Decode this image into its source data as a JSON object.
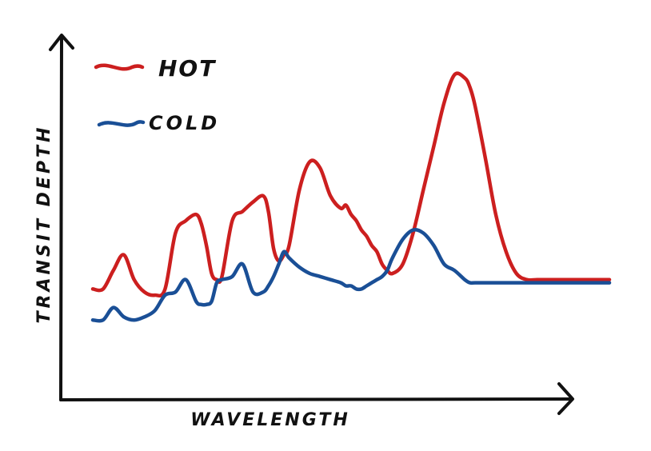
{
  "chart_data": {
    "type": "line",
    "xlabel": "WAVELENGTH",
    "ylabel": "TRANSIT DEPTH",
    "title": "",
    "grid": false,
    "ticks": false,
    "legend_position": "top-left",
    "xlim": [
      0,
      100
    ],
    "ylim": [
      0,
      100
    ],
    "series": [
      {
        "name": "HOT",
        "color": "#cc1f1f",
        "x": [
          0,
          2,
          4,
          6,
          8,
          10,
          12,
          14,
          16,
          18,
          20,
          21,
          22,
          23,
          24,
          25,
          27,
          29,
          31,
          33,
          34,
          35,
          36,
          37,
          38,
          40,
          42,
          44,
          46,
          48,
          49,
          50,
          51,
          52,
          53,
          54,
          55,
          56,
          57,
          58,
          60,
          62,
          64,
          66,
          68,
          70,
          72,
          73,
          74,
          76,
          78,
          80,
          82,
          84,
          86,
          88,
          90,
          91,
          92,
          93,
          94,
          96,
          98,
          100
        ],
        "y": [
          28,
          28,
          34,
          39,
          31,
          27,
          26,
          28,
          46,
          50,
          52,
          49,
          42,
          33,
          31,
          32,
          50,
          53,
          56,
          58,
          53,
          41,
          37,
          39,
          42,
          60,
          69,
          67,
          58,
          54,
          55,
          52,
          50,
          47,
          45,
          42,
          40,
          36,
          34,
          33,
          36,
          46,
          60,
          74,
          88,
          97,
          96,
          93,
          87,
          70,
          52,
          40,
          33,
          31,
          31,
          31,
          31,
          31,
          31,
          31,
          31,
          31,
          31,
          31
        ]
      },
      {
        "name": "COLD",
        "color": "#1a4f96",
        "x": [
          0,
          2,
          4,
          6,
          8,
          10,
          12,
          14,
          16,
          18,
          20,
          21,
          22,
          23,
          24,
          25,
          27,
          29,
          31,
          33,
          34,
          35,
          36,
          37,
          38,
          40,
          42,
          44,
          46,
          48,
          49,
          50,
          51,
          52,
          53,
          54,
          55,
          56,
          57,
          58,
          60,
          62,
          64,
          66,
          68,
          70,
          72,
          73,
          74,
          76,
          78,
          80,
          82,
          84,
          86,
          88,
          90,
          91,
          92,
          93,
          94,
          96,
          98,
          100
        ],
        "y": [
          18,
          18,
          22,
          19,
          18,
          19,
          21,
          26,
          27,
          31,
          24,
          23,
          23,
          24,
          30,
          31,
          32,
          36,
          27,
          27,
          29,
          32,
          36,
          40,
          38,
          35,
          33,
          32,
          31,
          30,
          29,
          29,
          28,
          28,
          29,
          30,
          31,
          32,
          34,
          38,
          44,
          47,
          46,
          42,
          36,
          34,
          31,
          30,
          30,
          30,
          30,
          30,
          30,
          30,
          30,
          30,
          30,
          30,
          30,
          30,
          30,
          30,
          30,
          30
        ]
      }
    ]
  }
}
